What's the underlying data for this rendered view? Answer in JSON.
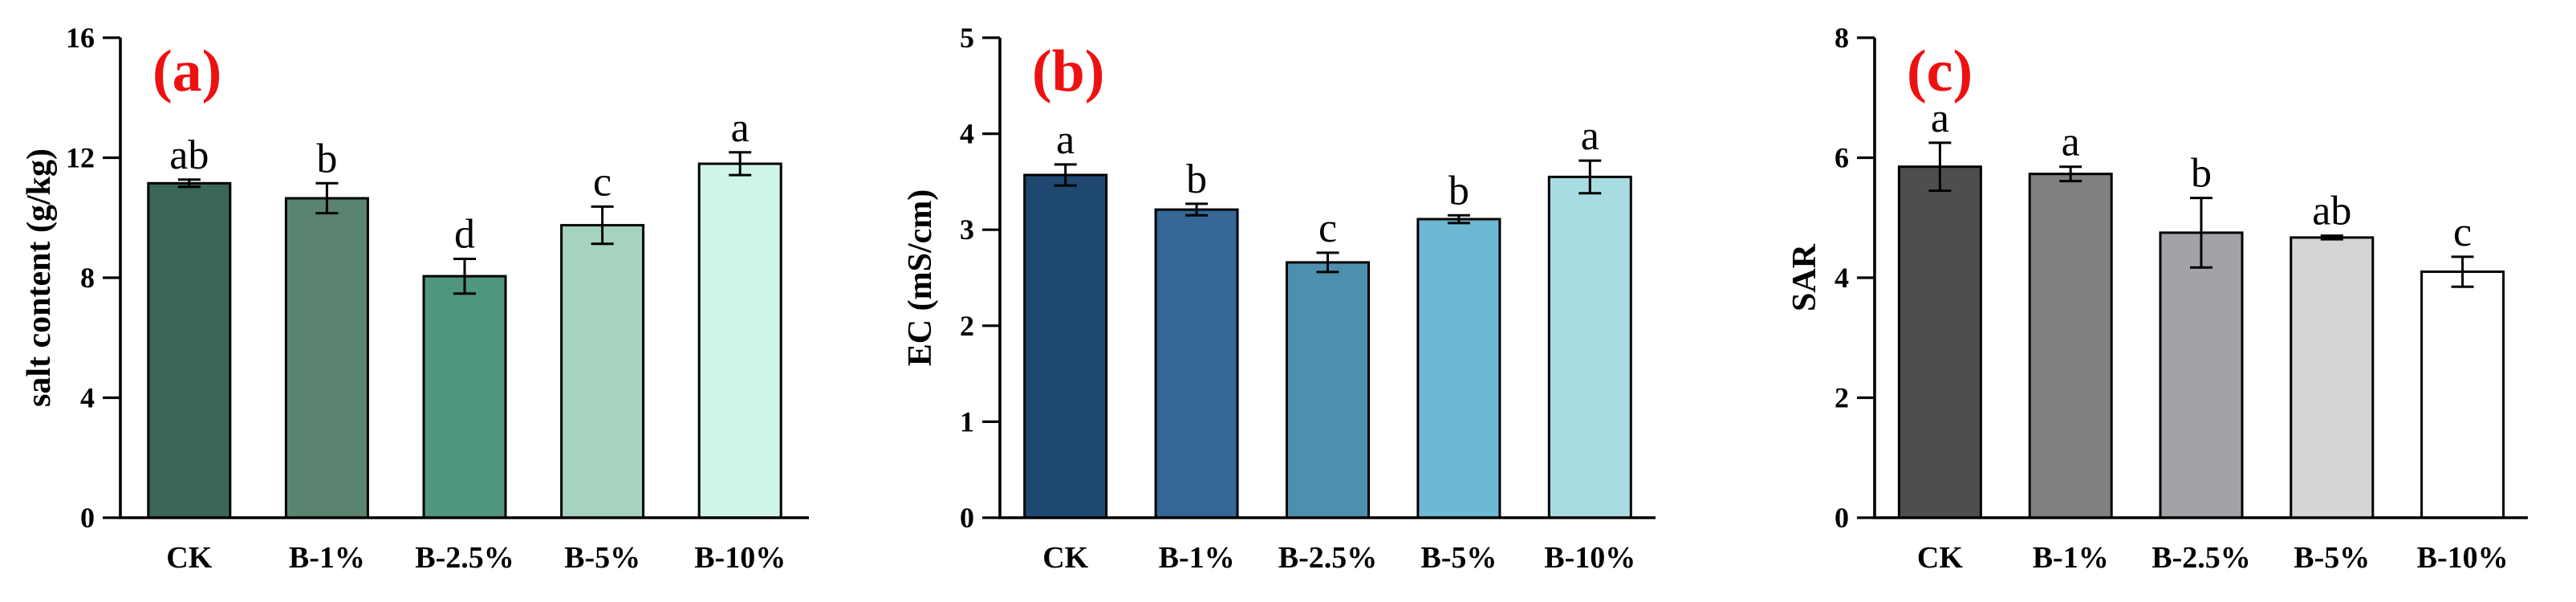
{
  "chart_data": [
    {
      "type": "bar",
      "panel_label": "(a)",
      "ylabel": "salt content (g/kg)",
      "xlabel": "",
      "ylim": [
        0,
        16
      ],
      "yticks": [
        "0",
        "4",
        "8",
        "12",
        "16"
      ],
      "categories": [
        "CK",
        "B-1%",
        "B-2.5%",
        "B-5%",
        "B-10%"
      ],
      "values": [
        11.15,
        10.65,
        8.05,
        9.75,
        11.8
      ],
      "errors": [
        0.12,
        0.5,
        0.58,
        0.62,
        0.38
      ],
      "significance": [
        "ab",
        "b",
        "d",
        "c",
        "a"
      ],
      "colors": [
        "#3a6656",
        "#5a8470",
        "#4f967c",
        "#a6d3bf",
        "#d0f6e8"
      ],
      "grid": false
    },
    {
      "type": "bar",
      "panel_label": "(b)",
      "ylabel": "EC (mS/cm)",
      "xlabel": "",
      "ylim": [
        0,
        5
      ],
      "yticks": [
        "0",
        "1",
        "2",
        "3",
        "4",
        "5"
      ],
      "categories": [
        "CK",
        "B-1%",
        "B-2.5%",
        "B-5%",
        "B-10%"
      ],
      "values": [
        3.57,
        3.21,
        2.66,
        3.11,
        3.55
      ],
      "errors": [
        0.11,
        0.06,
        0.1,
        0.04,
        0.17
      ],
      "significance": [
        "a",
        "b",
        "c",
        "b",
        "a"
      ],
      "colors": [
        "#1e4870",
        "#346696",
        "#4f8fae",
        "#6db8d2",
        "#a8dce2"
      ],
      "grid": false
    },
    {
      "type": "bar",
      "panel_label": "(c)",
      "ylabel": "SAR",
      "xlabel": "",
      "ylim": [
        0,
        8
      ],
      "yticks": [
        "0",
        "2",
        "4",
        "6",
        "8"
      ],
      "categories": [
        "CK",
        "B-1%",
        "B-2.5%",
        "B-5%",
        "B-10%"
      ],
      "values": [
        5.85,
        5.73,
        4.75,
        4.67,
        4.1
      ],
      "errors": [
        0.4,
        0.12,
        0.58,
        0.03,
        0.25
      ],
      "significance": [
        "a",
        "a",
        "b",
        "ab",
        "c"
      ],
      "colors": [
        "#4e4e4e",
        "#808080",
        "#a3a3a7",
        "#d5d5d5",
        "#ffffff"
      ],
      "grid": false
    }
  ]
}
